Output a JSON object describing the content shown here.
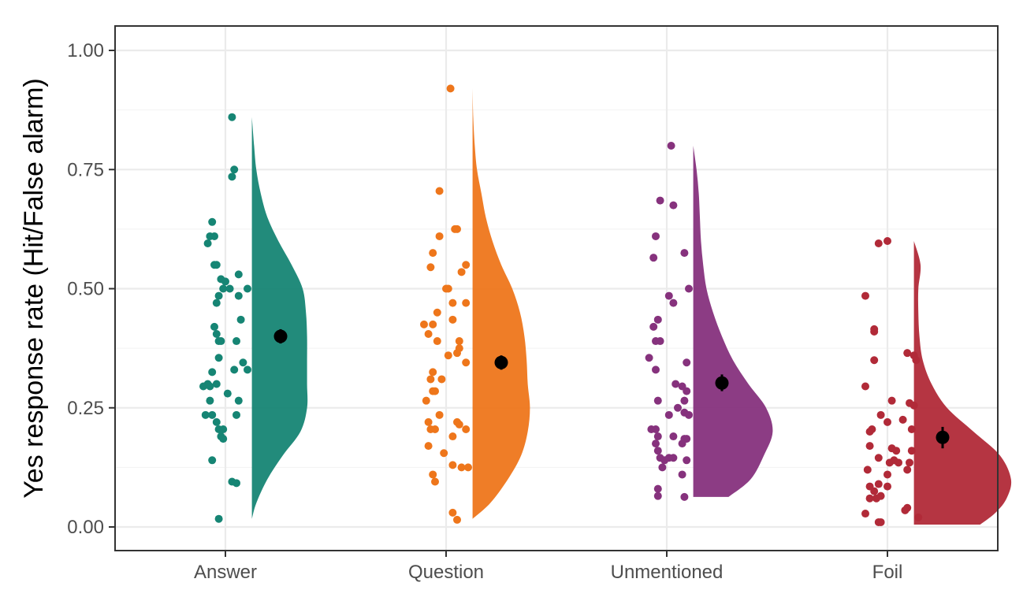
{
  "chart_data": {
    "type": "raincloud",
    "title": "",
    "xlabel": "",
    "ylabel": "Yes response rate (Hit/False alarm)",
    "ylim": [
      -0.045,
      1.05
    ],
    "yticks": [
      0,
      0.25,
      0.5,
      0.75,
      1
    ],
    "ytick_labels": [
      "0.00",
      "0.25",
      "0.50",
      "0.75",
      "1.00"
    ],
    "grid": true,
    "legend": "none",
    "categories": [
      "Answer",
      "Question",
      "Unmentioned",
      "Foil"
    ],
    "series": [
      {
        "category": "Answer",
        "color": "#168574",
        "mean": 0.4,
        "ci": [
          0.385,
          0.415
        ],
        "points": [
          {
            "x": 0.03,
            "y": 0.86
          },
          {
            "x": 0.04,
            "y": 0.75
          },
          {
            "x": 0.03,
            "y": 0.735
          },
          {
            "x": -0.06,
            "y": 0.64
          },
          {
            "x": -0.07,
            "y": 0.61
          },
          {
            "x": -0.05,
            "y": 0.61
          },
          {
            "x": -0.08,
            "y": 0.595
          },
          {
            "x": -0.05,
            "y": 0.55
          },
          {
            "x": -0.04,
            "y": 0.55
          },
          {
            "x": 0.06,
            "y": 0.53
          },
          {
            "x": -0.02,
            "y": 0.52
          },
          {
            "x": 0.0,
            "y": 0.515
          },
          {
            "x": 0.1,
            "y": 0.5
          },
          {
            "x": -0.01,
            "y": 0.5
          },
          {
            "x": 0.02,
            "y": 0.5
          },
          {
            "x": -0.03,
            "y": 0.485
          },
          {
            "x": 0.06,
            "y": 0.485
          },
          {
            "x": -0.04,
            "y": 0.47
          },
          {
            "x": 0.07,
            "y": 0.435
          },
          {
            "x": -0.05,
            "y": 0.42
          },
          {
            "x": -0.04,
            "y": 0.405
          },
          {
            "x": -0.03,
            "y": 0.39
          },
          {
            "x": -0.02,
            "y": 0.39
          },
          {
            "x": 0.05,
            "y": 0.39
          },
          {
            "x": -0.03,
            "y": 0.355
          },
          {
            "x": 0.08,
            "y": 0.345
          },
          {
            "x": 0.04,
            "y": 0.33
          },
          {
            "x": 0.1,
            "y": 0.33
          },
          {
            "x": -0.06,
            "y": 0.325
          },
          {
            "x": -0.08,
            "y": 0.3
          },
          {
            "x": -0.1,
            "y": 0.295
          },
          {
            "x": -0.07,
            "y": 0.295
          },
          {
            "x": -0.04,
            "y": 0.3
          },
          {
            "x": 0.01,
            "y": 0.28
          },
          {
            "x": 0.06,
            "y": 0.265
          },
          {
            "x": -0.07,
            "y": 0.265
          },
          {
            "x": -0.09,
            "y": 0.235
          },
          {
            "x": -0.06,
            "y": 0.235
          },
          {
            "x": 0.05,
            "y": 0.235
          },
          {
            "x": -0.04,
            "y": 0.22
          },
          {
            "x": -0.03,
            "y": 0.205
          },
          {
            "x": -0.01,
            "y": 0.205
          },
          {
            "x": -0.02,
            "y": 0.19
          },
          {
            "x": -0.01,
            "y": 0.185
          },
          {
            "x": -0.06,
            "y": 0.14
          },
          {
            "x": 0.03,
            "y": 0.095
          },
          {
            "x": 0.05,
            "y": 0.092
          },
          {
            "x": -0.03,
            "y": 0.017
          }
        ],
        "density": {
          "y": [
            0.017,
            0.05,
            0.1,
            0.15,
            0.2,
            0.25,
            0.3,
            0.35,
            0.4,
            0.45,
            0.5,
            0.55,
            0.6,
            0.65,
            0.7,
            0.75,
            0.8,
            0.86
          ],
          "w": [
            0.0,
            0.02,
            0.07,
            0.14,
            0.22,
            0.25,
            0.25,
            0.25,
            0.25,
            0.245,
            0.23,
            0.18,
            0.12,
            0.07,
            0.04,
            0.02,
            0.01,
            0.0
          ]
        }
      },
      {
        "category": "Question",
        "color": "#ee761b",
        "mean": 0.345,
        "ci": [
          0.33,
          0.36
        ],
        "points": [
          {
            "x": 0.02,
            "y": 0.92
          },
          {
            "x": -0.03,
            "y": 0.705
          },
          {
            "x": 0.04,
            "y": 0.625
          },
          {
            "x": 0.05,
            "y": 0.625
          },
          {
            "x": -0.03,
            "y": 0.61
          },
          {
            "x": -0.06,
            "y": 0.575
          },
          {
            "x": 0.09,
            "y": 0.55
          },
          {
            "x": -0.07,
            "y": 0.545
          },
          {
            "x": 0.07,
            "y": 0.535
          },
          {
            "x": 0.0,
            "y": 0.5
          },
          {
            "x": 0.01,
            "y": 0.5
          },
          {
            "x": 0.03,
            "y": 0.47
          },
          {
            "x": 0.09,
            "y": 0.47
          },
          {
            "x": -0.04,
            "y": 0.45
          },
          {
            "x": 0.03,
            "y": 0.435
          },
          {
            "x": -0.1,
            "y": 0.425
          },
          {
            "x": -0.06,
            "y": 0.425
          },
          {
            "x": -0.08,
            "y": 0.405
          },
          {
            "x": -0.04,
            "y": 0.39
          },
          {
            "x": 0.06,
            "y": 0.39
          },
          {
            "x": 0.06,
            "y": 0.375
          },
          {
            "x": 0.05,
            "y": 0.365
          },
          {
            "x": 0.01,
            "y": 0.36
          },
          {
            "x": 0.09,
            "y": 0.345
          },
          {
            "x": -0.06,
            "y": 0.325
          },
          {
            "x": -0.07,
            "y": 0.31
          },
          {
            "x": -0.02,
            "y": 0.31
          },
          {
            "x": -0.05,
            "y": 0.285
          },
          {
            "x": -0.06,
            "y": 0.285
          },
          {
            "x": -0.09,
            "y": 0.265
          },
          {
            "x": -0.03,
            "y": 0.235
          },
          {
            "x": -0.08,
            "y": 0.22
          },
          {
            "x": 0.05,
            "y": 0.22
          },
          {
            "x": 0.06,
            "y": 0.215
          },
          {
            "x": -0.07,
            "y": 0.205
          },
          {
            "x": -0.05,
            "y": 0.205
          },
          {
            "x": 0.09,
            "y": 0.205
          },
          {
            "x": 0.03,
            "y": 0.19
          },
          {
            "x": -0.08,
            "y": 0.17
          },
          {
            "x": -0.01,
            "y": 0.155
          },
          {
            "x": 0.03,
            "y": 0.13
          },
          {
            "x": 0.07,
            "y": 0.125
          },
          {
            "x": 0.1,
            "y": 0.125
          },
          {
            "x": -0.06,
            "y": 0.11
          },
          {
            "x": -0.05,
            "y": 0.095
          },
          {
            "x": 0.03,
            "y": 0.03
          },
          {
            "x": 0.05,
            "y": 0.015
          }
        ],
        "density": {
          "y": [
            0.017,
            0.05,
            0.1,
            0.15,
            0.2,
            0.25,
            0.3,
            0.35,
            0.4,
            0.45,
            0.5,
            0.55,
            0.6,
            0.65,
            0.7,
            0.75,
            0.8,
            0.86,
            0.92
          ],
          "w": [
            0.0,
            0.08,
            0.16,
            0.22,
            0.25,
            0.26,
            0.25,
            0.245,
            0.235,
            0.215,
            0.18,
            0.13,
            0.09,
            0.06,
            0.04,
            0.02,
            0.01,
            0.003,
            0.0
          ]
        }
      },
      {
        "category": "Unmentioned",
        "color": "#86327d",
        "mean": 0.302,
        "ci": [
          0.285,
          0.32
        ],
        "points": [
          {
            "x": 0.02,
            "y": 0.8
          },
          {
            "x": -0.03,
            "y": 0.685
          },
          {
            "x": 0.03,
            "y": 0.675
          },
          {
            "x": -0.05,
            "y": 0.61
          },
          {
            "x": 0.08,
            "y": 0.575
          },
          {
            "x": -0.06,
            "y": 0.565
          },
          {
            "x": 0.1,
            "y": 0.5
          },
          {
            "x": 0.01,
            "y": 0.485
          },
          {
            "x": 0.03,
            "y": 0.47
          },
          {
            "x": -0.04,
            "y": 0.435
          },
          {
            "x": -0.06,
            "y": 0.42
          },
          {
            "x": -0.05,
            "y": 0.39
          },
          {
            "x": -0.03,
            "y": 0.39
          },
          {
            "x": -0.08,
            "y": 0.355
          },
          {
            "x": 0.09,
            "y": 0.345
          },
          {
            "x": -0.05,
            "y": 0.33
          },
          {
            "x": 0.04,
            "y": 0.3
          },
          {
            "x": 0.07,
            "y": 0.295
          },
          {
            "x": 0.09,
            "y": 0.285
          },
          {
            "x": 0.08,
            "y": 0.265
          },
          {
            "x": -0.04,
            "y": 0.265
          },
          {
            "x": 0.05,
            "y": 0.25
          },
          {
            "x": 0.01,
            "y": 0.235
          },
          {
            "x": 0.08,
            "y": 0.24
          },
          {
            "x": 0.1,
            "y": 0.235
          },
          {
            "x": -0.07,
            "y": 0.205
          },
          {
            "x": -0.05,
            "y": 0.205
          },
          {
            "x": -0.04,
            "y": 0.19
          },
          {
            "x": 0.03,
            "y": 0.19
          },
          {
            "x": 0.09,
            "y": 0.185
          },
          {
            "x": 0.08,
            "y": 0.185
          },
          {
            "x": -0.05,
            "y": 0.175
          },
          {
            "x": 0.07,
            "y": 0.175
          },
          {
            "x": -0.04,
            "y": 0.16
          },
          {
            "x": -0.03,
            "y": 0.145
          },
          {
            "x": -0.01,
            "y": 0.14
          },
          {
            "x": 0.01,
            "y": 0.145
          },
          {
            "x": 0.03,
            "y": 0.145
          },
          {
            "x": 0.09,
            "y": 0.14
          },
          {
            "x": -0.02,
            "y": 0.125
          },
          {
            "x": 0.07,
            "y": 0.11
          },
          {
            "x": -0.04,
            "y": 0.08
          },
          {
            "x": -0.04,
            "y": 0.065
          },
          {
            "x": 0.08,
            "y": 0.063
          }
        ],
        "density": {
          "y": [
            0.063,
            0.1,
            0.15,
            0.2,
            0.25,
            0.3,
            0.35,
            0.4,
            0.45,
            0.5,
            0.55,
            0.6,
            0.65,
            0.7,
            0.75,
            0.8
          ],
          "w": [
            0.16,
            0.26,
            0.32,
            0.36,
            0.33,
            0.25,
            0.18,
            0.13,
            0.09,
            0.06,
            0.045,
            0.035,
            0.03,
            0.025,
            0.015,
            0.0
          ]
        }
      },
      {
        "category": "Foil",
        "color": "#b12a38",
        "mean": 0.188,
        "ci": [
          0.165,
          0.21
        ],
        "points": [
          {
            "x": 0.0,
            "y": 0.6
          },
          {
            "x": -0.04,
            "y": 0.595
          },
          {
            "x": -0.1,
            "y": 0.485
          },
          {
            "x": -0.06,
            "y": 0.415
          },
          {
            "x": -0.06,
            "y": 0.41
          },
          {
            "x": 0.09,
            "y": 0.365
          },
          {
            "x": 0.12,
            "y": 0.36
          },
          {
            "x": 0.13,
            "y": 0.35
          },
          {
            "x": -0.06,
            "y": 0.35
          },
          {
            "x": -0.1,
            "y": 0.295
          },
          {
            "x": 0.02,
            "y": 0.265
          },
          {
            "x": 0.1,
            "y": 0.26
          },
          {
            "x": 0.12,
            "y": 0.255
          },
          {
            "x": -0.03,
            "y": 0.235
          },
          {
            "x": 0.07,
            "y": 0.225
          },
          {
            "x": 0.0,
            "y": 0.22
          },
          {
            "x": -0.07,
            "y": 0.205
          },
          {
            "x": -0.08,
            "y": 0.2
          },
          {
            "x": 0.11,
            "y": 0.205
          },
          {
            "x": -0.08,
            "y": 0.17
          },
          {
            "x": 0.02,
            "y": 0.165
          },
          {
            "x": 0.04,
            "y": 0.16
          },
          {
            "x": 0.11,
            "y": 0.16
          },
          {
            "x": -0.04,
            "y": 0.145
          },
          {
            "x": 0.01,
            "y": 0.135
          },
          {
            "x": 0.03,
            "y": 0.14
          },
          {
            "x": 0.05,
            "y": 0.135
          },
          {
            "x": 0.1,
            "y": 0.135
          },
          {
            "x": -0.09,
            "y": 0.12
          },
          {
            "x": 0.09,
            "y": 0.12
          },
          {
            "x": 0.0,
            "y": 0.11
          },
          {
            "x": -0.04,
            "y": 0.09
          },
          {
            "x": -0.08,
            "y": 0.085
          },
          {
            "x": 0.0,
            "y": 0.085
          },
          {
            "x": -0.06,
            "y": 0.075
          },
          {
            "x": -0.03,
            "y": 0.065
          },
          {
            "x": -0.08,
            "y": 0.06
          },
          {
            "x": -0.05,
            "y": 0.06
          },
          {
            "x": 0.09,
            "y": 0.04
          },
          {
            "x": 0.08,
            "y": 0.035
          },
          {
            "x": -0.1,
            "y": 0.028
          },
          {
            "x": 0.14,
            "y": 0.02
          },
          {
            "x": -0.04,
            "y": 0.01
          },
          {
            "x": -0.03,
            "y": 0.01
          }
        ],
        "density": {
          "y": [
            0.005,
            0.03,
            0.06,
            0.1,
            0.15,
            0.2,
            0.25,
            0.3,
            0.35,
            0.4,
            0.45,
            0.5,
            0.55,
            0.6
          ],
          "w": [
            0.3,
            0.37,
            0.42,
            0.44,
            0.39,
            0.27,
            0.15,
            0.08,
            0.04,
            0.025,
            0.02,
            0.02,
            0.03,
            0.0
          ]
        }
      }
    ]
  }
}
